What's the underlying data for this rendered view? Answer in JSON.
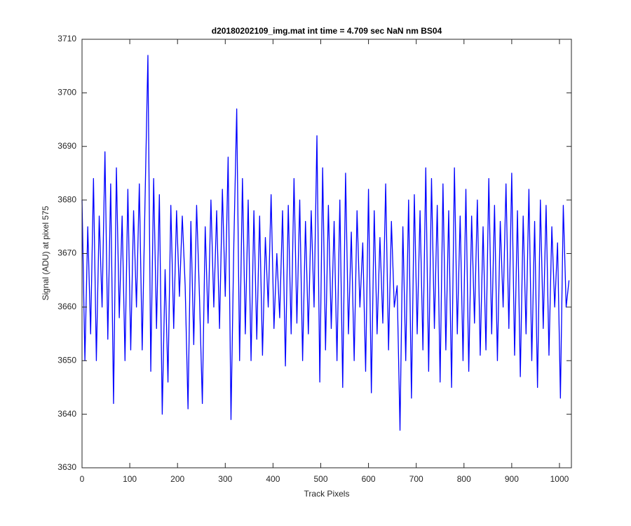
{
  "chart_data": {
    "type": "line",
    "title": "d20180202109_img.mat int time = 4.709 sec  NaN nm BS04",
    "xlabel": "Track Pixels",
    "ylabel": "Signal (ADU) at pixel 575",
    "xlim": [
      0,
      1025
    ],
    "ylim": [
      3630,
      3710
    ],
    "xticks": [
      0,
      100,
      200,
      300,
      400,
      500,
      600,
      700,
      800,
      900,
      1000
    ],
    "yticks": [
      3630,
      3640,
      3650,
      3660,
      3670,
      3680,
      3690,
      3700,
      3710
    ],
    "x": [
      0,
      6,
      12,
      18,
      24,
      30,
      36,
      42,
      48,
      54,
      60,
      66,
      72,
      78,
      84,
      90,
      96,
      102,
      108,
      114,
      120,
      126,
      132,
      138,
      144,
      150,
      156,
      162,
      168,
      174,
      180,
      186,
      192,
      198,
      204,
      210,
      216,
      222,
      228,
      234,
      240,
      246,
      252,
      258,
      264,
      270,
      276,
      282,
      288,
      294,
      300,
      306,
      312,
      318,
      324,
      330,
      336,
      342,
      348,
      354,
      360,
      366,
      372,
      378,
      384,
      390,
      396,
      402,
      408,
      414,
      420,
      426,
      432,
      438,
      444,
      450,
      456,
      462,
      468,
      474,
      480,
      486,
      492,
      498,
      504,
      510,
      516,
      522,
      528,
      534,
      540,
      546,
      552,
      558,
      564,
      570,
      576,
      582,
      588,
      594,
      600,
      606,
      612,
      618,
      624,
      630,
      636,
      642,
      648,
      654,
      660,
      666,
      672,
      678,
      684,
      690,
      696,
      702,
      708,
      714,
      720,
      726,
      732,
      738,
      744,
      750,
      756,
      762,
      768,
      774,
      780,
      786,
      792,
      798,
      804,
      810,
      816,
      822,
      828,
      834,
      840,
      846,
      852,
      858,
      864,
      870,
      876,
      882,
      888,
      894,
      900,
      906,
      912,
      918,
      924,
      930,
      936,
      942,
      948,
      954,
      960,
      966,
      972,
      978,
      984,
      990,
      996,
      1002,
      1008,
      1014,
      1020
    ],
    "series": [
      {
        "name": "signal",
        "color": "#0000ff",
        "values": [
          3680,
          3650,
          3675,
          3655,
          3684,
          3650,
          3677,
          3660,
          3689,
          3654,
          3683,
          3642,
          3686,
          3658,
          3677,
          3650,
          3682,
          3652,
          3678,
          3660,
          3683,
          3652,
          3680,
          3707,
          3648,
          3684,
          3656,
          3681,
          3640,
          3667,
          3646,
          3679,
          3656,
          3678,
          3662,
          3677,
          3664,
          3641,
          3676,
          3653,
          3679,
          3662,
          3642,
          3675,
          3657,
          3680,
          3660,
          3678,
          3656,
          3682,
          3662,
          3688,
          3639,
          3672,
          3697,
          3650,
          3684,
          3655,
          3680,
          3650,
          3678,
          3654,
          3677,
          3651,
          3673,
          3660,
          3681,
          3656,
          3670,
          3658,
          3678,
          3649,
          3679,
          3655,
          3684,
          3657,
          3680,
          3650,
          3676,
          3655,
          3678,
          3660,
          3692,
          3646,
          3686,
          3652,
          3679,
          3656,
          3676,
          3650,
          3680,
          3645,
          3685,
          3655,
          3674,
          3650,
          3678,
          3660,
          3672,
          3648,
          3682,
          3644,
          3678,
          3655,
          3673,
          3657,
          3683,
          3652,
          3676,
          3660,
          3664,
          3637,
          3675,
          3650,
          3680,
          3643,
          3681,
          3655,
          3678,
          3652,
          3686,
          3648,
          3684,
          3656,
          3679,
          3646,
          3683,
          3652,
          3678,
          3645,
          3686,
          3655,
          3677,
          3650,
          3682,
          3648,
          3677,
          3657,
          3680,
          3651,
          3675,
          3652,
          3684,
          3655,
          3679,
          3650,
          3676,
          3660,
          3683,
          3656,
          3685,
          3651,
          3678,
          3647,
          3677,
          3655,
          3682,
          3650,
          3676,
          3645,
          3680,
          3656,
          3679,
          3651,
          3675,
          3660,
          3672,
          3643,
          3679,
          3660,
          3665
        ]
      }
    ]
  }
}
